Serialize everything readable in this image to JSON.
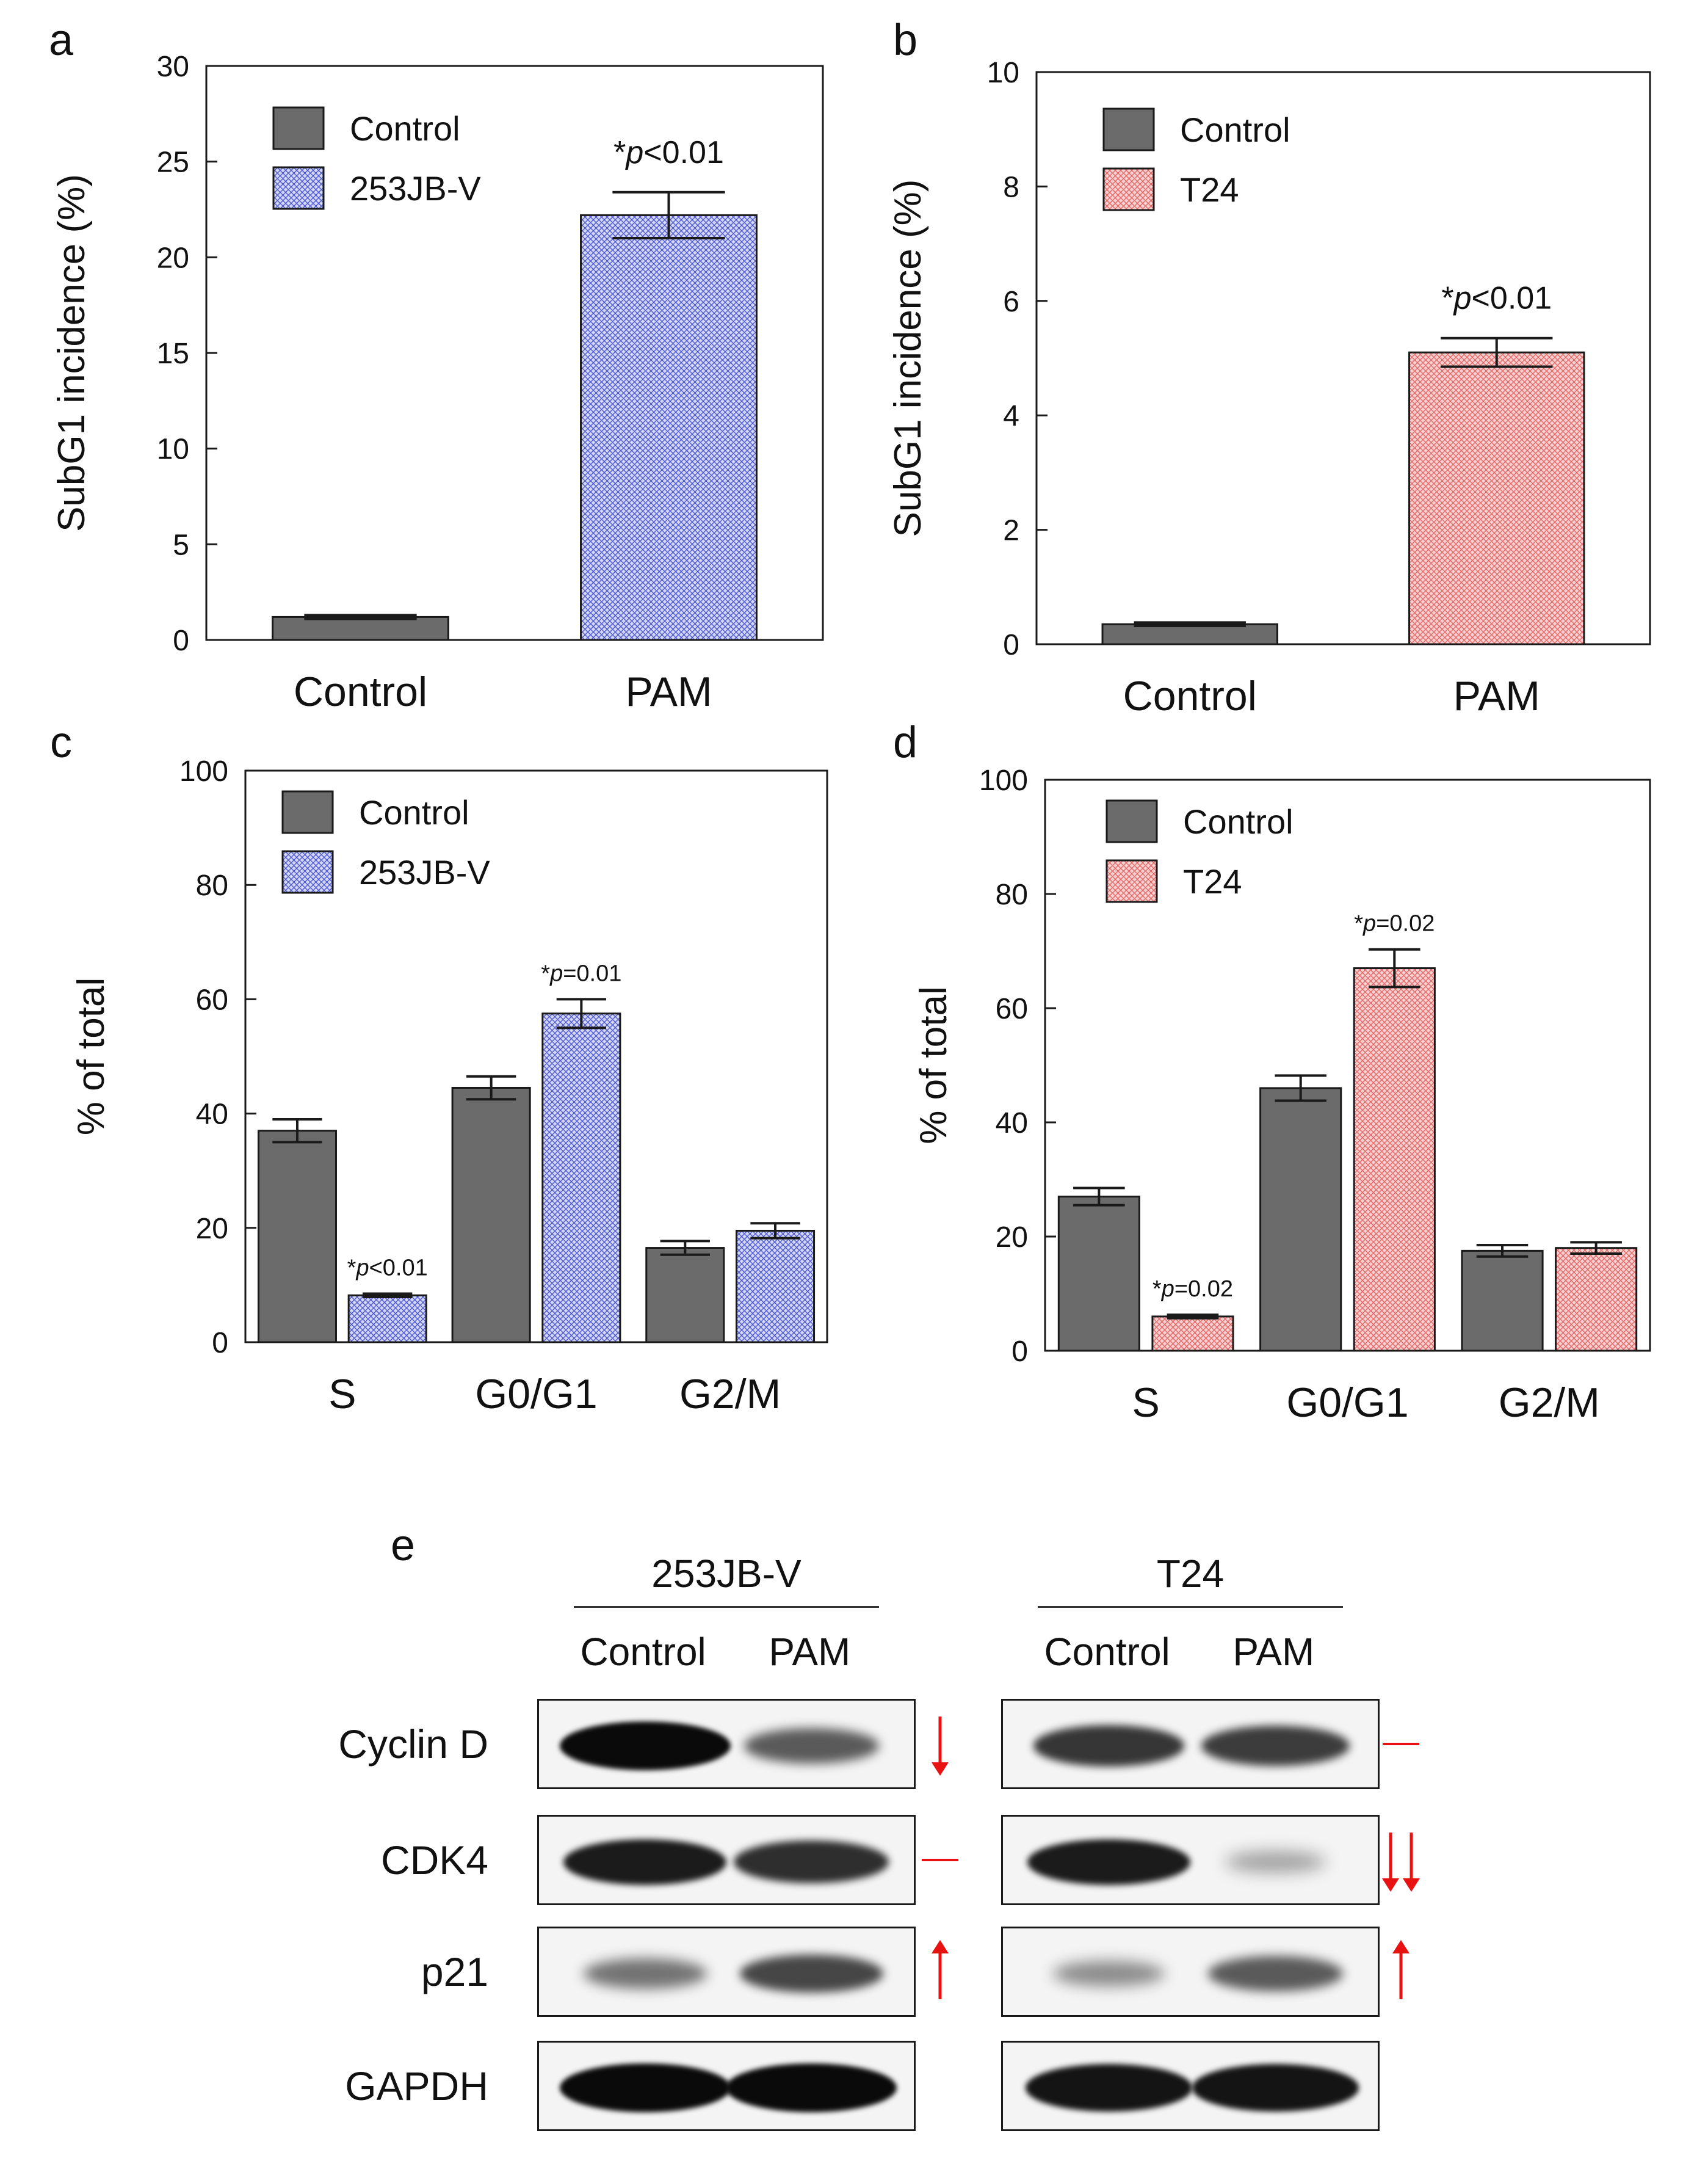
{
  "colors": {
    "control_bar": "#6b6b6b",
    "blue_hatch_bg": "#d3d7f7",
    "blue_hatch_line": "#4f58cf",
    "red_hatch_bg": "#f9d0d0",
    "red_hatch_line": "#e36868",
    "arrow": "#e81212",
    "axis": "#1a1a1a"
  },
  "chart_data": [
    {
      "id": "a",
      "panel_label": "a",
      "type": "bar",
      "ylabel": "SubG1 incidence (%)",
      "ylim": [
        0,
        30
      ],
      "yticks": [
        0,
        5,
        10,
        15,
        20,
        25,
        30
      ],
      "categories": [
        "Control",
        "PAM"
      ],
      "legend": [
        "Control",
        "253JB-V"
      ],
      "bars": [
        {
          "category": "Control",
          "series": "Control",
          "value": 1.2,
          "error": 0.1
        },
        {
          "category": "PAM",
          "series": "253JB-V",
          "value": 22.2,
          "error": 1.2
        }
      ],
      "annotations": [
        {
          "bar_index": 1,
          "prefix": "*",
          "p": "p",
          "rest": "<0.01"
        }
      ]
    },
    {
      "id": "b",
      "panel_label": "b",
      "type": "bar",
      "ylabel": "SubG1 incidence (%)",
      "ylim": [
        0,
        10
      ],
      "yticks": [
        0,
        2,
        4,
        6,
        8,
        10
      ],
      "categories": [
        "Control",
        "PAM"
      ],
      "legend": [
        "Control",
        "T24"
      ],
      "bars": [
        {
          "category": "Control",
          "series": "Control",
          "value": 0.35,
          "error": 0.03
        },
        {
          "category": "PAM",
          "series": "T24",
          "value": 5.1,
          "error": 0.25
        }
      ],
      "annotations": [
        {
          "bar_index": 1,
          "prefix": "*",
          "p": "p",
          "rest": "<0.01"
        }
      ]
    },
    {
      "id": "c",
      "panel_label": "c",
      "type": "bar",
      "ylabel": "% of total",
      "ylim": [
        0,
        100
      ],
      "yticks": [
        0,
        20,
        40,
        60,
        80,
        100
      ],
      "categories": [
        "S",
        "G0/G1",
        "G2/M"
      ],
      "legend": [
        "Control",
        "253JB-V"
      ],
      "bars": [
        {
          "category": "S",
          "series": "Control",
          "value": 37,
          "error": 2
        },
        {
          "category": "S",
          "series": "253JB-V",
          "value": 8.2,
          "error": 0.3
        },
        {
          "category": "G0/G1",
          "series": "Control",
          "value": 44.5,
          "error": 2
        },
        {
          "category": "G0/G1",
          "series": "253JB-V",
          "value": 57.5,
          "error": 2.5
        },
        {
          "category": "G2/M",
          "series": "Control",
          "value": 16.5,
          "error": 1.2
        },
        {
          "category": "G2/M",
          "series": "253JB-V",
          "value": 19.5,
          "error": 1.3
        }
      ],
      "annotations": [
        {
          "bar_index": 1,
          "prefix": "*",
          "p": "p",
          "rest": "<0.01"
        },
        {
          "bar_index": 3,
          "prefix": "*",
          "p": "p",
          "rest": "=0.01"
        }
      ]
    },
    {
      "id": "d",
      "panel_label": "d",
      "type": "bar",
      "ylabel": "% of total",
      "ylim": [
        0,
        100
      ],
      "yticks": [
        0,
        20,
        40,
        60,
        80,
        100
      ],
      "categories": [
        "S",
        "G0/G1",
        "G2/M"
      ],
      "legend": [
        "Control",
        "T24"
      ],
      "bars": [
        {
          "category": "S",
          "series": "Control",
          "value": 27,
          "error": 1.5
        },
        {
          "category": "S",
          "series": "T24",
          "value": 6,
          "error": 0.3
        },
        {
          "category": "G0/G1",
          "series": "Control",
          "value": 46,
          "error": 2.2
        },
        {
          "category": "G0/G1",
          "series": "T24",
          "value": 67,
          "error": 3.3
        },
        {
          "category": "G2/M",
          "series": "Control",
          "value": 17.5,
          "error": 1
        },
        {
          "category": "G2/M",
          "series": "T24",
          "value": 18,
          "error": 1
        }
      ],
      "annotations": [
        {
          "bar_index": 1,
          "prefix": "*",
          "p": "p",
          "rest": "=0.02"
        },
        {
          "bar_index": 3,
          "prefix": "*",
          "p": "p",
          "rest": "=0.02"
        }
      ]
    }
  ],
  "western_blot": {
    "panel_label": "e",
    "groups": [
      {
        "name": "253JB-V",
        "lanes": [
          "Control",
          "PAM"
        ]
      },
      {
        "name": "T24",
        "lanes": [
          "Control",
          "PAM"
        ]
      }
    ],
    "rows": [
      {
        "protein": "Cyclin D",
        "band_intensity": [
          [
            1.0,
            0.55
          ],
          [
            0.75,
            0.72
          ]
        ],
        "change": [
          "down",
          "none"
        ]
      },
      {
        "protein": "CDK4",
        "band_intensity": [
          [
            0.9,
            0.8
          ],
          [
            0.9,
            0.12
          ]
        ],
        "change": [
          "none",
          "double-down"
        ]
      },
      {
        "protein": "p21",
        "band_intensity": [
          [
            0.4,
            0.65
          ],
          [
            0.25,
            0.55
          ]
        ],
        "change": [
          "up",
          "up"
        ]
      },
      {
        "protein": "GAPDH",
        "band_intensity": [
          [
            1.0,
            1.0
          ],
          [
            0.95,
            0.95
          ]
        ],
        "change": [
          "none",
          "none"
        ]
      }
    ]
  }
}
